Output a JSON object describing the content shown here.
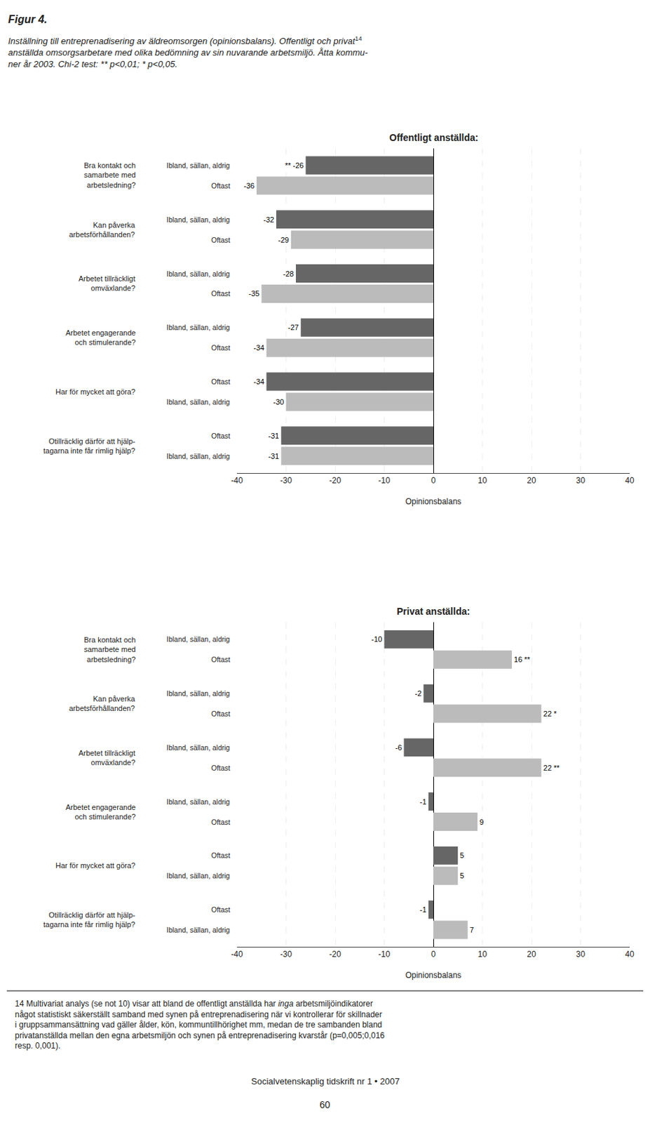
{
  "title": "Figur 4.",
  "subtitle": [
    "Inställning till entreprenadisering av äldreomsorgen (opinionsbalans). Offentligt och privat",
    "anställda omsorgsarbetare med olika bedömning av sin nuvarande arbetsmiljö. Åtta kommu-",
    "ner år 2003. Chi-2 test: ** p<0,01; * p<0,05."
  ],
  "note_mark": "14",
  "footnote": [
    [
      "14 Multivariat analys (se not 10) visar att bland de offentligt anställda har ",
      "inga",
      " arbetsmiljöindikatorer"
    ],
    [
      "något statistiskt säkerställt samband med synen på entreprenadisering när vi kontrollerar för skillnader"
    ],
    [
      "i gruppsammansättning vad gäller ålder, kön, kommuntillhörighet mm, medan de tre sambanden bland"
    ],
    [
      "privatanställda mellan den egna arbetsmiljön och synen på entreprenadisering kvarstår (p=0,005;0,016"
    ],
    [
      "resp. 0,001)."
    ]
  ],
  "journal": "Socialvetenskaplig tidskrift nr 1 • 2007",
  "page": "60",
  "chart_data": [
    {
      "type": "bar",
      "orientation": "horizontal",
      "title": "Offentligt anställda:",
      "xlabel": "Opinionsbalans",
      "xlim": [
        -40,
        40
      ],
      "xticks": [
        -40,
        -30,
        -20,
        -10,
        0,
        10,
        20,
        30,
        40
      ],
      "grid": true,
      "data_labels": true,
      "categories": [
        "Bra kontakt och\nsamarbete med\narbetsledning?",
        "Kan påverka\narbetsförhållanden?",
        "Arbetet tillräckligt\nomväxlande?",
        "Arbetet engagerande\noch stimulerande?",
        "Har för mycket att göra?",
        "Otillräcklig därför att hjälp-\ntagarna inte får rimlig hjälp?"
      ],
      "series": [
        {
          "color": "#666666",
          "labels": [
            "Ibland, sällan, aldrig",
            "Ibland, sällan, aldrig",
            "Ibland, sällan, aldrig",
            "Ibland, sällan, aldrig",
            "Oftast",
            "Oftast"
          ],
          "values": [
            -26,
            -32,
            -28,
            -27,
            -34,
            -31
          ],
          "value_labels": [
            "** -26",
            "-32",
            "-28",
            "-27",
            "-34",
            "-31"
          ]
        },
        {
          "color": "#bbbbbb",
          "labels": [
            "Oftast",
            "Oftast",
            "Oftast",
            "Oftast",
            "Ibland, sällan, aldrig",
            "Ibland, sällan, aldrig"
          ],
          "values": [
            -36,
            -29,
            -35,
            -34,
            -30,
            -31
          ],
          "value_labels": [
            "-36",
            "-29",
            "-35",
            "-34",
            "-30",
            "-31"
          ]
        }
      ]
    },
    {
      "type": "bar",
      "orientation": "horizontal",
      "title": "Privat anställda:",
      "xlabel": "Opinionsbalans",
      "xlim": [
        -40,
        40
      ],
      "xticks": [
        -40,
        -30,
        -20,
        -10,
        0,
        10,
        20,
        30,
        40
      ],
      "grid": true,
      "data_labels": true,
      "categories": [
        "Bra kontakt och\nsamarbete med\narbetsledning?",
        "Kan påverka\narbetsförhållanden?",
        "Arbetet tillräckligt\nomväxlande?",
        "Arbetet engagerande\noch stimulerande?",
        "Har för mycket att göra?",
        "Otillräcklig därför att hjälp-\ntagarna inte får rimlig hjälp?"
      ],
      "series": [
        {
          "color": "#666666",
          "labels": [
            "Ibland, sällan, aldrig",
            "Ibland, sällan, aldrig",
            "Ibland, sällan, aldrig",
            "Ibland, sällan, aldrig",
            "Oftast",
            "Oftast"
          ],
          "values": [
            -10,
            -2,
            -6,
            -1,
            5,
            -1
          ],
          "value_labels": [
            "-10",
            "-2",
            "-6",
            "-1",
            "5",
            "-1"
          ]
        },
        {
          "color": "#bbbbbb",
          "labels": [
            "Oftast",
            "Oftast",
            "Oftast",
            "Oftast",
            "Ibland, sällan, aldrig",
            "Ibland, sällan, aldrig"
          ],
          "values": [
            16,
            22,
            22,
            9,
            5,
            7
          ],
          "value_labels": [
            "16 **",
            "22 *",
            "22 **",
            "9",
            "5",
            "7"
          ]
        }
      ]
    }
  ]
}
